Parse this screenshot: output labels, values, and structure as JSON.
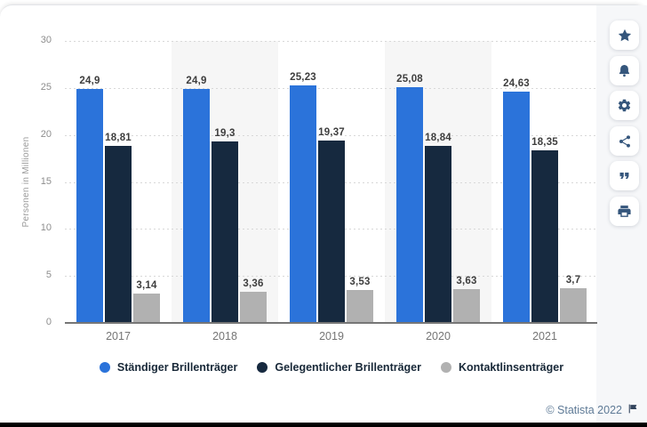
{
  "chart_data": {
    "type": "bar",
    "title": "",
    "xlabel": "",
    "ylabel": "Personen in Millionen",
    "ylim": [
      0,
      30
    ],
    "yticks": [
      0,
      5,
      10,
      15,
      20,
      25,
      30
    ],
    "grid": "horizontal-dotted",
    "legend_position": "bottom",
    "value_labels": true,
    "decimal_separator": ",",
    "categories": [
      "2017",
      "2018",
      "2019",
      "2020",
      "2021"
    ],
    "series": [
      {
        "name": "Ständiger Brillenträger",
        "color": "#2b73da",
        "values": [
          24.9,
          24.9,
          25.23,
          25.08,
          24.63
        ]
      },
      {
        "name": "Gelegentlicher Brillenträger",
        "color": "#16293f",
        "values": [
          18.81,
          19.3,
          19.37,
          18.84,
          18.35
        ]
      },
      {
        "name": "Kontaktlinsenträger",
        "color": "#b1b1b1",
        "values": [
          3.14,
          3.36,
          3.53,
          3.63,
          3.7
        ]
      }
    ]
  },
  "sidebar": {
    "buttons": [
      {
        "icon": "star-icon"
      },
      {
        "icon": "bell-icon"
      },
      {
        "icon": "gear-icon"
      },
      {
        "icon": "share-icon"
      },
      {
        "icon": "quote-icon"
      },
      {
        "icon": "print-icon"
      }
    ]
  },
  "footer": {
    "copyright": "© Statista 2022",
    "flag": "flag-icon"
  },
  "colors": {
    "accent_blue": "#2b73da",
    "dark_navy": "#16293f",
    "gray": "#b1b1b1",
    "band": "#f6f6f6",
    "icon": "#35567c",
    "footer_text": "#5e7a96"
  }
}
